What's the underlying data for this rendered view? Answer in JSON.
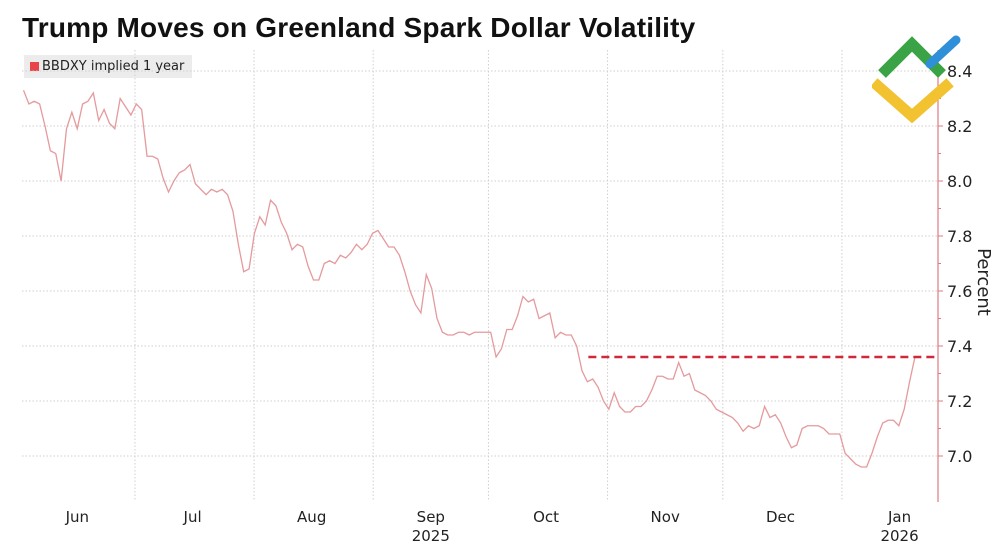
{
  "chart_data": {
    "type": "line",
    "title": "Trump Moves on Greenland Spark Dollar Volatility",
    "ylabel": "Percent",
    "xlabel": "",
    "xlim": [
      "2025-05-30",
      "2026-01-26"
    ],
    "ylim": [
      6.84,
      8.44
    ],
    "grid": true,
    "legend_position": "top-left",
    "y_ticks": [
      7.0,
      7.2,
      7.4,
      7.6,
      7.8,
      8.0,
      8.2,
      8.4
    ],
    "y_tick_labels": [
      "7.0",
      "7.2",
      "7.4",
      "7.6",
      "7.8",
      "8.0",
      "8.2",
      "8.4"
    ],
    "x_ticks": [
      {
        "label": "Jun",
        "date": "2025-06-16"
      },
      {
        "label": "Jul",
        "date": "2025-07-16"
      },
      {
        "label": "Aug",
        "date": "2025-08-16"
      },
      {
        "label": "Sep",
        "date": "2025-09-16",
        "year": "2025"
      },
      {
        "label": "Oct",
        "date": "2025-10-16"
      },
      {
        "label": "Nov",
        "date": "2025-11-16"
      },
      {
        "label": "Dec",
        "date": "2025-12-16"
      },
      {
        "label": "Jan",
        "date": "2026-01-16",
        "year": "2026"
      }
    ],
    "month_gridlines": [
      "2025-07-01",
      "2025-08-01",
      "2025-09-01",
      "2025-10-01",
      "2025-11-01",
      "2025-12-01",
      "2026-01-01"
    ],
    "series": [
      {
        "name": "BBDXY implied 1 year",
        "color": "#e8454b",
        "start_date": "2025-06-02",
        "end_date": "2026-01-20",
        "spacing": "evenly spaced trading days",
        "values": [
          8.33,
          8.28,
          8.29,
          8.28,
          8.2,
          8.11,
          8.1,
          8.0,
          8.19,
          8.25,
          8.19,
          8.28,
          8.29,
          8.32,
          8.22,
          8.26,
          8.21,
          8.19,
          8.3,
          8.27,
          8.24,
          8.28,
          8.26,
          8.09,
          8.09,
          8.08,
          8.01,
          7.96,
          8.0,
          8.03,
          8.04,
          8.06,
          7.99,
          7.97,
          7.95,
          7.97,
          7.96,
          7.97,
          7.95,
          7.89,
          7.77,
          7.67,
          7.68,
          7.81,
          7.87,
          7.84,
          7.93,
          7.91,
          7.85,
          7.81,
          7.75,
          7.77,
          7.76,
          7.69,
          7.64,
          7.64,
          7.7,
          7.71,
          7.7,
          7.73,
          7.72,
          7.74,
          7.77,
          7.75,
          7.77,
          7.81,
          7.82,
          7.79,
          7.76,
          7.76,
          7.73,
          7.67,
          7.6,
          7.55,
          7.52,
          7.66,
          7.61,
          7.5,
          7.45,
          7.44,
          7.44,
          7.45,
          7.45,
          7.44,
          7.45,
          7.45,
          7.45,
          7.45,
          7.36,
          7.39,
          7.46,
          7.46,
          7.51,
          7.58,
          7.56,
          7.57,
          7.5,
          7.51,
          7.52,
          7.43,
          7.45,
          7.44,
          7.44,
          7.4,
          7.31,
          7.27,
          7.28,
          7.25,
          7.2,
          7.17,
          7.23,
          7.18,
          7.16,
          7.16,
          7.18,
          7.18,
          7.2,
          7.24,
          7.29,
          7.29,
          7.28,
          7.28,
          7.34,
          7.29,
          7.3,
          7.24,
          7.23,
          7.22,
          7.2,
          7.17,
          7.16,
          7.15,
          7.14,
          7.12,
          7.09,
          7.11,
          7.1,
          7.11,
          7.18,
          7.14,
          7.15,
          7.12,
          7.07,
          7.03,
          7.04,
          7.1,
          7.11,
          7.11,
          7.11,
          7.1,
          7.08,
          7.08,
          7.08,
          7.01,
          6.99,
          6.97,
          6.96,
          6.96,
          7.01,
          7.07,
          7.12,
          7.13,
          7.13,
          7.11,
          7.17,
          7.27,
          7.36
        ]
      }
    ],
    "annotations": [
      {
        "type": "dashed-hline",
        "value": 7.36,
        "from_date": "2025-10-27",
        "color": "#d0283a"
      }
    ]
  },
  "logo": {
    "colors": [
      "#3aa345",
      "#2f8fd8",
      "#f2c230"
    ]
  }
}
